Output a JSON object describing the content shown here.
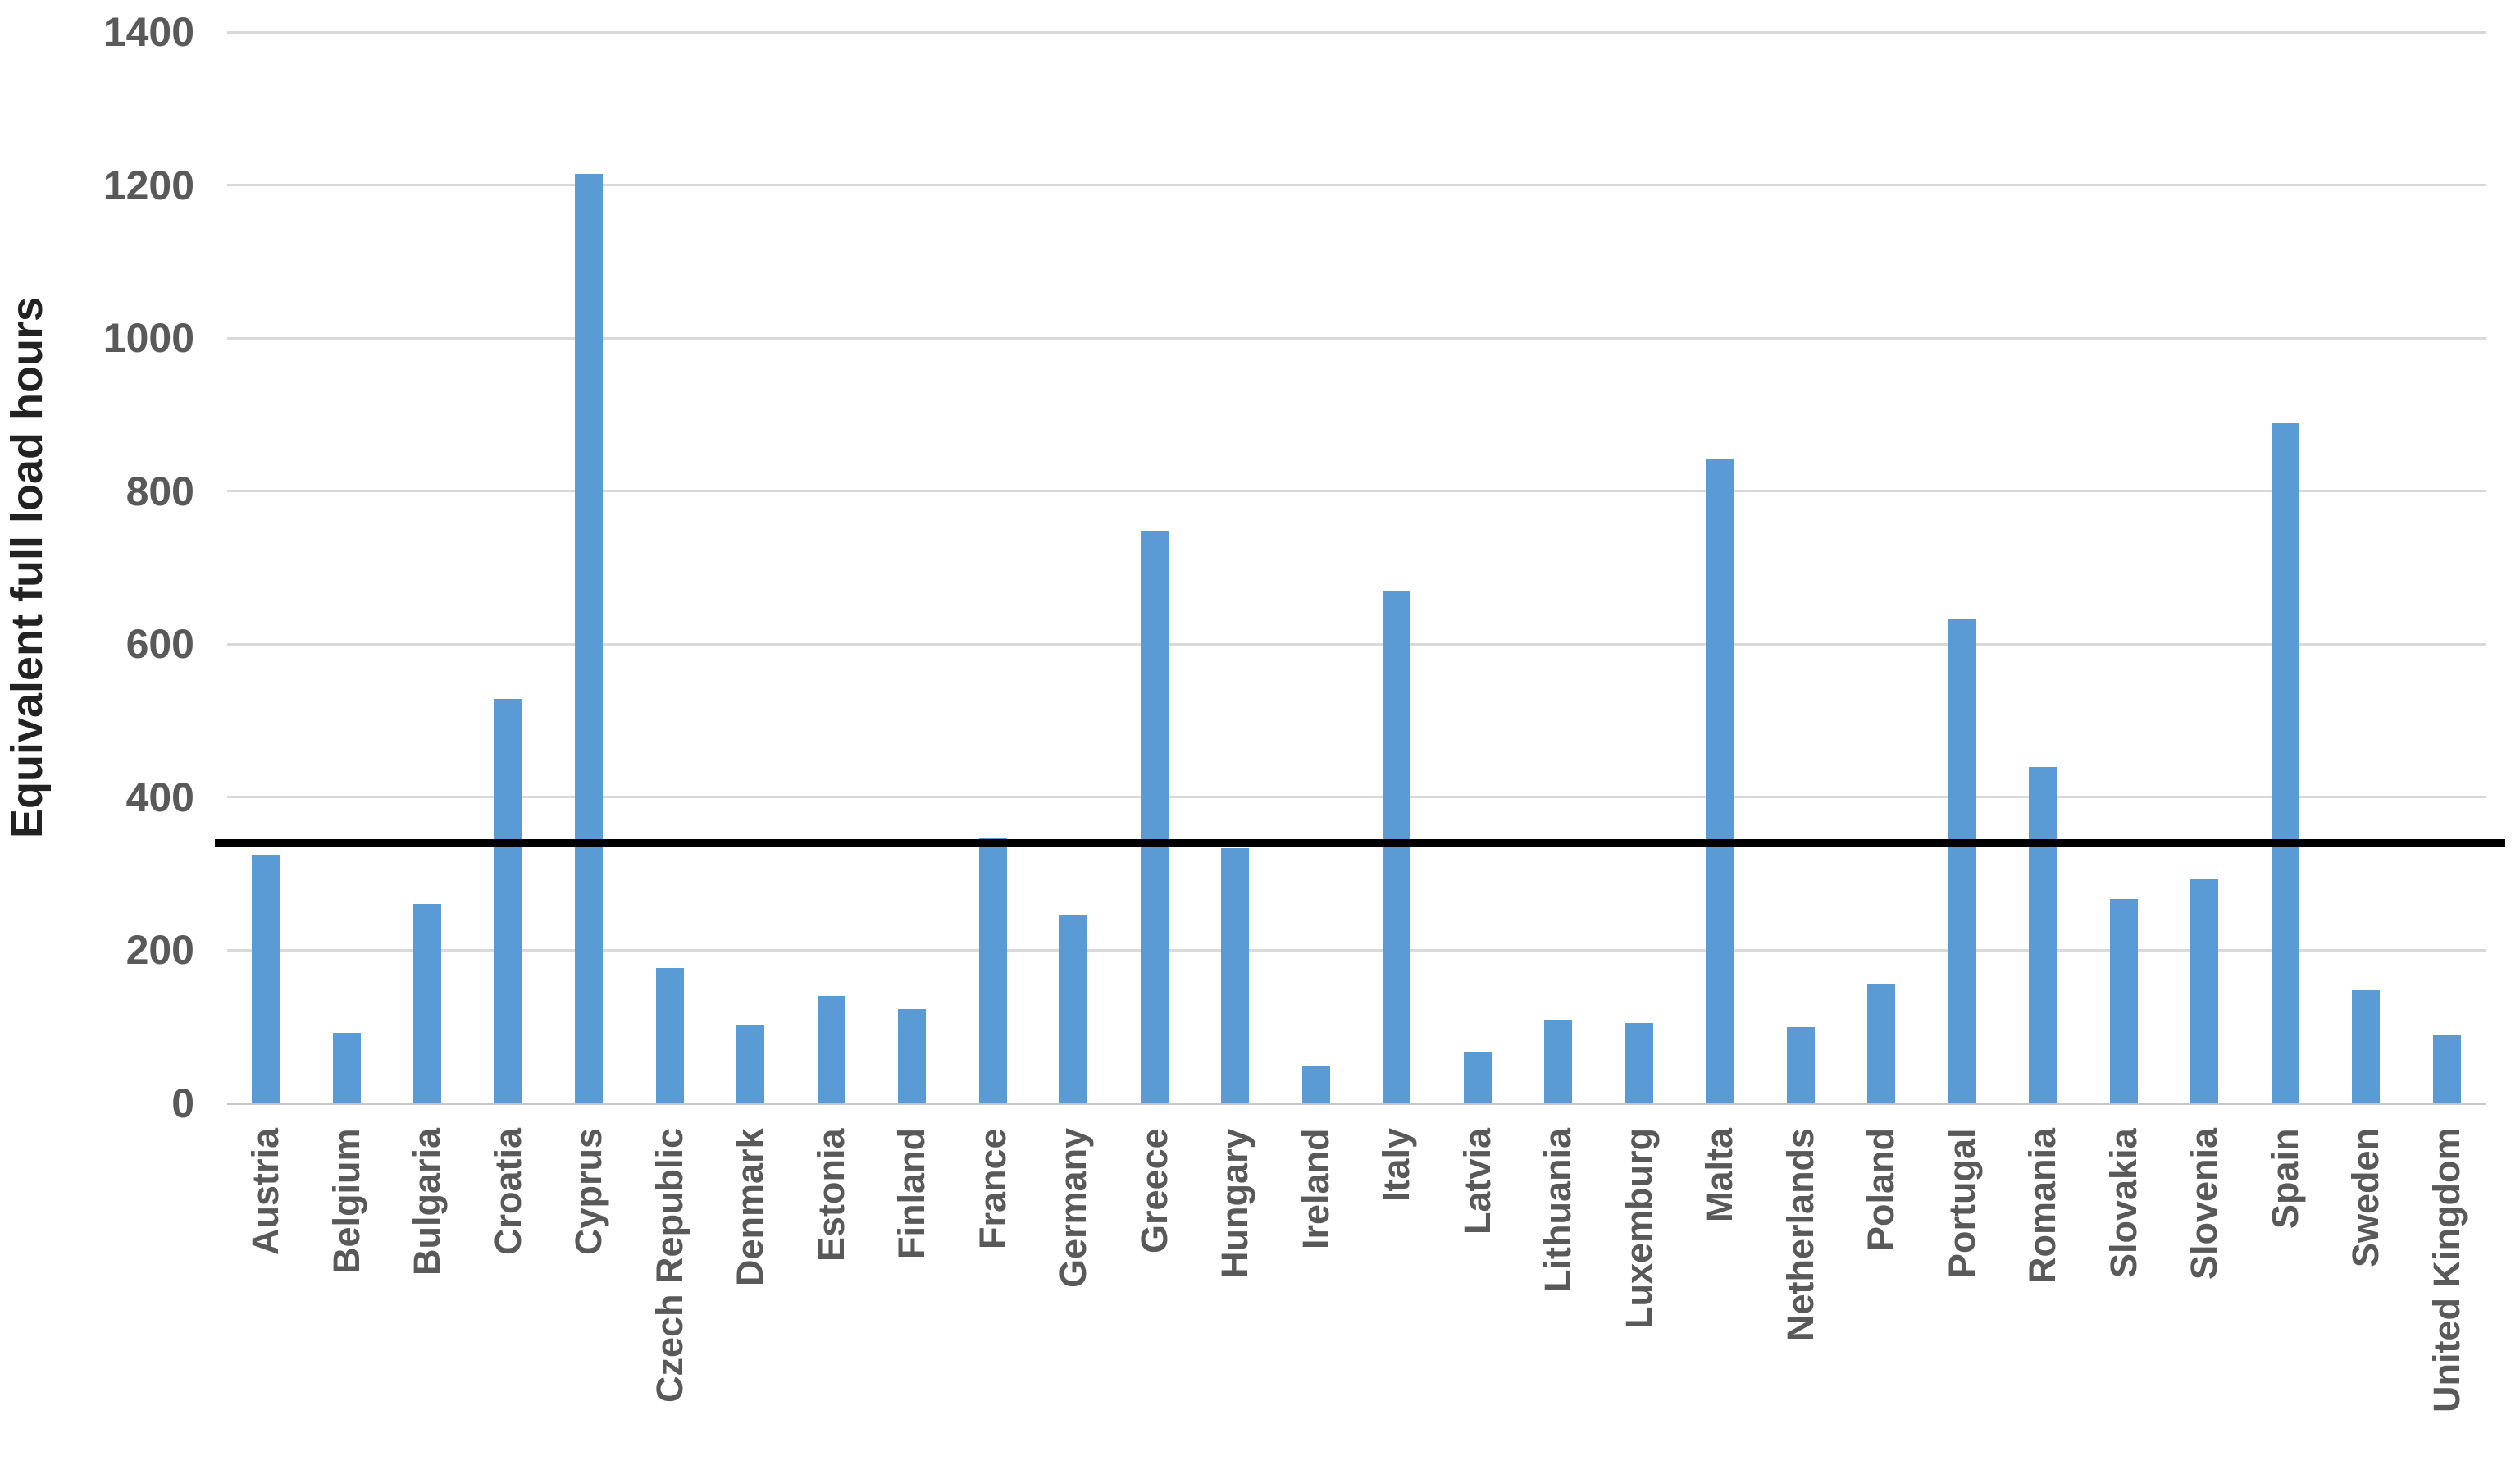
{
  "chart_data": {
    "type": "bar",
    "title": "",
    "xlabel": "",
    "ylabel": "Equivalent full load hours",
    "ylim": [
      0,
      1400
    ],
    "ytick_step": 200,
    "ytick_labels": [
      "0",
      "200",
      "400",
      "600",
      "800",
      "1000",
      "1200",
      "1400"
    ],
    "grid": true,
    "legend_position": "none",
    "categories": [
      "Austria",
      "Belgium",
      "Bulgaria",
      "Croatia",
      "Cyprus",
      "Czech Republic",
      "Denmark",
      "Estonia",
      "Finland",
      "France",
      "Germany",
      "Greece",
      "Hungary",
      "Ireland",
      "Italy",
      "Latvia",
      "Lithuania",
      "Luxemburg",
      "Malta",
      "Netherlands",
      "Poland",
      "Portugal",
      "Romania",
      "Slovakia",
      "Slovenia",
      "Spain",
      "Sweden",
      "United Kingdom"
    ],
    "values": [
      325,
      92,
      261,
      529,
      1215,
      177,
      103,
      140,
      123,
      347,
      246,
      748,
      333,
      48,
      669,
      68,
      108,
      105,
      842,
      100,
      157,
      634,
      439,
      267,
      294,
      889,
      148,
      89
    ],
    "reference_line": {
      "value": 340,
      "color": "#000000"
    },
    "bar_color": "#5b9bd5",
    "gridline_color": "#d9d9d9",
    "axis_label_color": "#595959"
  }
}
